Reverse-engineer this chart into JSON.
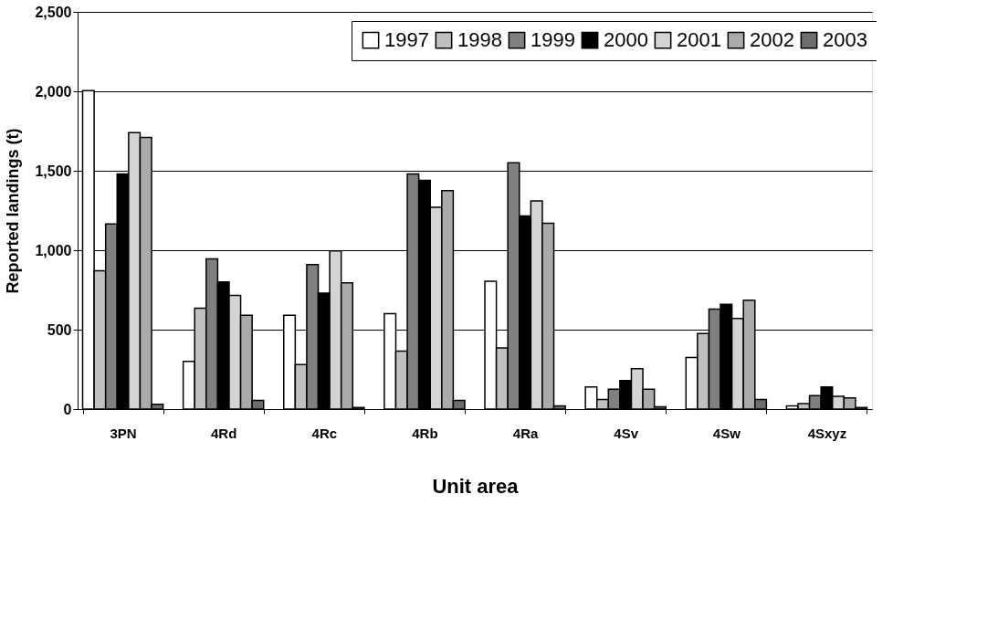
{
  "chart_data": {
    "type": "bar",
    "xlabel": "Unit area",
    "ylabel": "Reported landings (t)",
    "categories": [
      "3PN",
      "4Rd",
      "4Rc",
      "4Rb",
      "4Ra",
      "4Sv",
      "4Sw",
      "4Sxyz"
    ],
    "series": [
      {
        "name": "1997",
        "color": "#ffffff",
        "values": [
          2005,
          300,
          590,
          600,
          805,
          140,
          325,
          20
        ]
      },
      {
        "name": "1998",
        "color": "#c0c0c0",
        "values": [
          870,
          635,
          280,
          365,
          385,
          60,
          475,
          35
        ]
      },
      {
        "name": "1999",
        "color": "#808080",
        "values": [
          1165,
          945,
          910,
          1480,
          1550,
          125,
          630,
          85
        ]
      },
      {
        "name": "2000",
        "color": "#000000",
        "values": [
          1480,
          800,
          730,
          1440,
          1215,
          180,
          660,
          140
        ]
      },
      {
        "name": "2001",
        "color": "#d4d4d4",
        "values": [
          1740,
          715,
          995,
          1270,
          1310,
          255,
          570,
          80
        ]
      },
      {
        "name": "2002",
        "color": "#aaaaaa",
        "values": [
          1710,
          590,
          795,
          1375,
          1170,
          125,
          685,
          70
        ]
      },
      {
        "name": "2003",
        "color": "#6e6e6e",
        "values": [
          30,
          55,
          10,
          55,
          20,
          15,
          60,
          10
        ]
      }
    ],
    "ylim": [
      0,
      2500
    ],
    "yticks": [
      0,
      500,
      {
        "value": 1000,
        "label": "1,000"
      },
      {
        "value": 1500,
        "label": "1,500"
      },
      {
        "value": 2000,
        "label": "2,000"
      },
      {
        "value": 2500,
        "label": "2,500"
      }
    ],
    "grid": "y",
    "legend": "top"
  }
}
